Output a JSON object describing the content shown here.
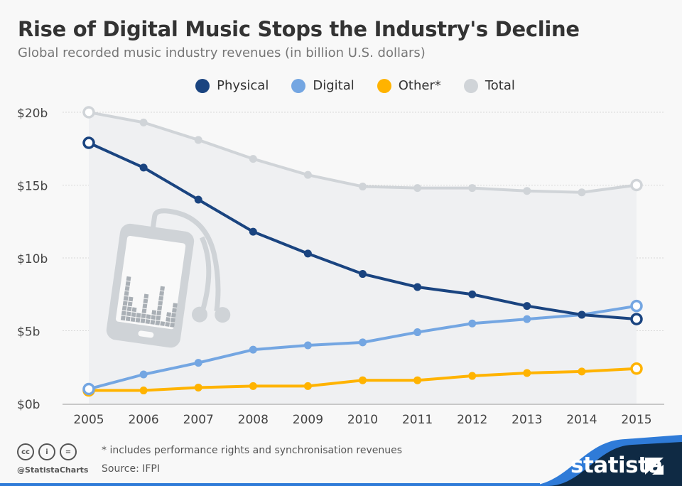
{
  "header": {
    "title": "Rise of Digital Music Stops the Industry's Decline",
    "subtitle": "Global recorded music industry revenues (in billion U.S. dollars)"
  },
  "chart_data": {
    "type": "line",
    "title": "Rise of Digital Music Stops the Industry's Decline",
    "subtitle": "Global recorded music industry revenues (in billion U.S. dollars)",
    "x": [
      "2005",
      "2006",
      "2007",
      "2008",
      "2009",
      "2010",
      "2011",
      "2012",
      "2013",
      "2014",
      "2015"
    ],
    "ylim": [
      0,
      20
    ],
    "yticks": [
      {
        "v": 0,
        "label": "$0b"
      },
      {
        "v": 5,
        "label": "$5b"
      },
      {
        "v": 10,
        "label": "$10b"
      },
      {
        "v": 15,
        "label": "$15b"
      },
      {
        "v": 20,
        "label": "$20b"
      }
    ],
    "grid": true,
    "legend_position": "top-center",
    "series": [
      {
        "name": "Physical",
        "color": "#1a4480",
        "values": [
          17.9,
          16.2,
          14.0,
          11.8,
          10.3,
          8.9,
          8.0,
          7.5,
          6.7,
          6.1,
          5.8
        ]
      },
      {
        "name": "Digital",
        "color": "#74a6e2",
        "values": [
          1.0,
          2.0,
          2.8,
          3.7,
          4.0,
          4.2,
          4.9,
          5.5,
          5.8,
          6.1,
          6.7
        ]
      },
      {
        "name": "Other*",
        "color": "#ffb300",
        "values": [
          0.9,
          0.9,
          1.1,
          1.2,
          1.2,
          1.6,
          1.6,
          1.9,
          2.1,
          2.2,
          2.4
        ]
      },
      {
        "name": "Total",
        "color": "#d0d4d8",
        "values": [
          20.0,
          19.3,
          18.1,
          16.8,
          15.7,
          14.9,
          14.8,
          14.8,
          14.6,
          14.5,
          15.0
        ]
      }
    ]
  },
  "footer": {
    "note": "* includes performance rights and synchronisation revenues",
    "source": "Source: IFPI",
    "handle": "@StatistaCharts",
    "brand": "statista",
    "cc_icons": [
      "cc-icon",
      "attribution-icon",
      "no-derivatives-icon"
    ]
  },
  "colors": {
    "area": "#eff0f2",
    "brand_dark": "#0f2a44",
    "brand_blue": "#2f7bd8"
  }
}
